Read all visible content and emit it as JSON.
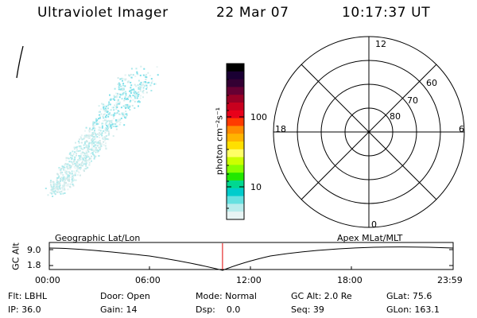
{
  "header": {
    "instrument": "Ultraviolet Imager",
    "date": "22 Mar 07",
    "time": "10:17:37 UT"
  },
  "colorbar": {
    "axis_label": "photon cm⁻²s⁻¹",
    "ticks": [
      "100",
      "10"
    ],
    "colors": [
      "#000000",
      "#1a0033",
      "#330033",
      "#660033",
      "#990026",
      "#c8001e",
      "#e8001a",
      "#ff3a00",
      "#ff8a00",
      "#ffb400",
      "#ffe000",
      "#ffff66",
      "#ccff00",
      "#88ff00",
      "#22e800",
      "#00d890",
      "#00cccc",
      "#66e0e0",
      "#b8ecec",
      "#e8f4f4"
    ]
  },
  "polar_plot": {
    "mlt_labels": {
      "top": "12",
      "left": "18",
      "right": "6",
      "bottom": "0"
    },
    "lat_labels": [
      "60",
      "70",
      "80"
    ]
  },
  "timeline": {
    "y_axis_label": "GC Alt",
    "y_ticks": [
      "9.0",
      "1.8"
    ],
    "left_label": "Geographic Lat/Lon",
    "right_label": "Apex MLat/MLT",
    "x_ticks": [
      "00:00",
      "06:00",
      "12:00",
      "18:00",
      "23:59"
    ],
    "current_time_fraction": 0.429
  },
  "footer": {
    "flt": "Flt: LBHL",
    "ip": "IP: 36.0",
    "door": "Door: Open",
    "gain": "Gain: 14",
    "mode": "Mode: Normal",
    "dsp": "Dsp:    0.0",
    "gc_alt": "GC Alt: 2.0 Re",
    "seq": "Seq: 39",
    "glat": "GLat: 75.6",
    "glon": "GLon: 163.1"
  }
}
